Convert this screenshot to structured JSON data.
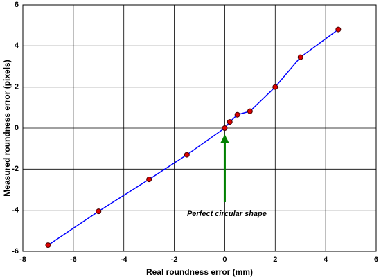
{
  "chart_data": {
    "type": "line",
    "x_label": "Real roundness error (mm)",
    "y_label": "Measured roundness error (pixels)",
    "annotation": "Perfect circular shape",
    "x": [
      -7,
      -5,
      -3,
      -1.5,
      0,
      0.2,
      0.5,
      1,
      2,
      3,
      4.5
    ],
    "series": [
      {
        "color": "#0000ff",
        "marker_color": "#dd0000",
        "values": [
          -5.7,
          -4.05,
          -2.5,
          -1.3,
          0,
          0.3,
          0.65,
          0.82,
          2.0,
          3.45,
          4.8
        ]
      }
    ],
    "xlim": [
      -8,
      6
    ],
    "xticks": [
      -8,
      -6,
      -4,
      -2,
      0,
      2,
      4,
      6
    ],
    "ylim": [
      -6,
      6
    ],
    "yticks": [
      -6,
      -4,
      -2,
      0,
      2,
      4,
      6
    ],
    "grid": true
  }
}
